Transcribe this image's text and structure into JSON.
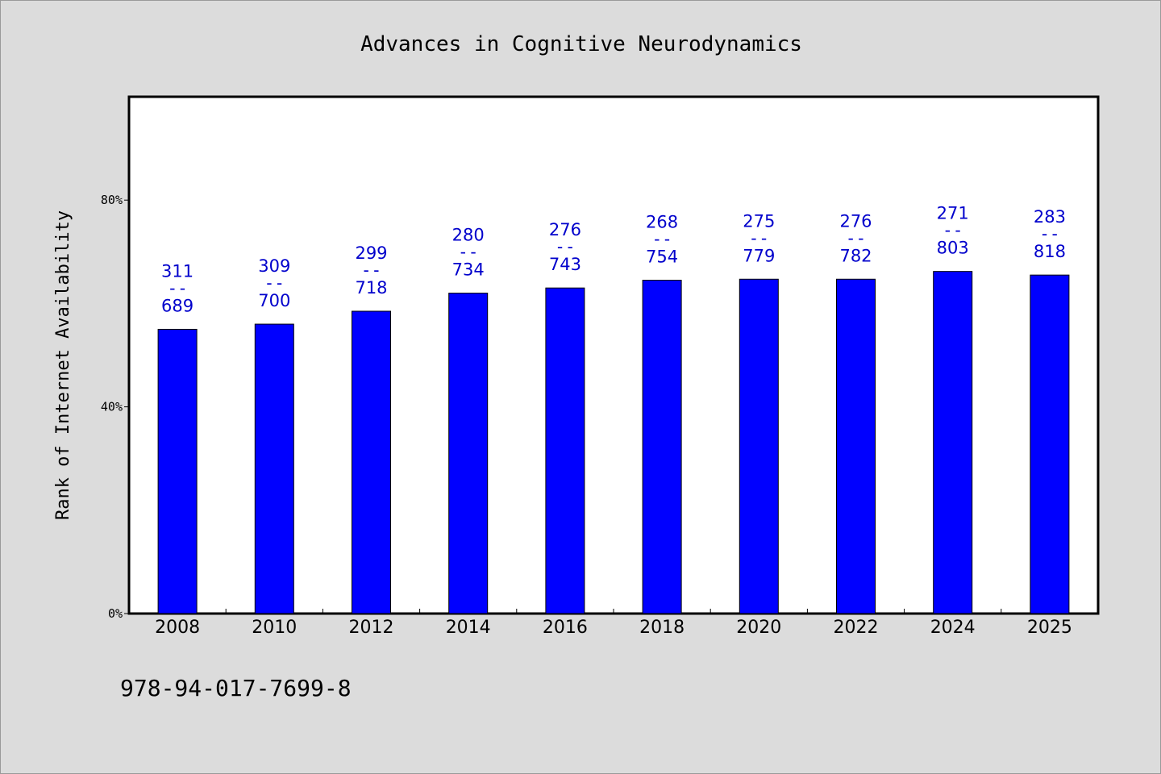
{
  "chart_data": {
    "type": "bar",
    "title": "Advances in Cognitive Neurodynamics",
    "ylabel": "Rank of Internet Availability",
    "xlabel": "",
    "categories": [
      "2008",
      "2010",
      "2012",
      "2014",
      "2016",
      "2018",
      "2020",
      "2022",
      "2024",
      "2025"
    ],
    "values": [
      55.0,
      56.0,
      58.5,
      62.0,
      63.0,
      64.5,
      64.7,
      64.7,
      66.2,
      65.5
    ],
    "labels_top": [
      "311",
      "309",
      "299",
      "280",
      "276",
      "268",
      "275",
      "276",
      "271",
      "283"
    ],
    "labels_bottom": [
      "689",
      "700",
      "718",
      "734",
      "743",
      "754",
      "779",
      "782",
      "803",
      "818"
    ],
    "label_separator": "--",
    "ylim": [
      0,
      100
    ],
    "yticks": [
      0,
      40,
      80
    ],
    "ytick_labels": [
      "0%",
      "40%",
      "80%"
    ],
    "grid": false,
    "bar_color": "#0000ff",
    "label_color": "#0000cc"
  },
  "footer": {
    "isbn": "978-94-017-7699-8"
  }
}
